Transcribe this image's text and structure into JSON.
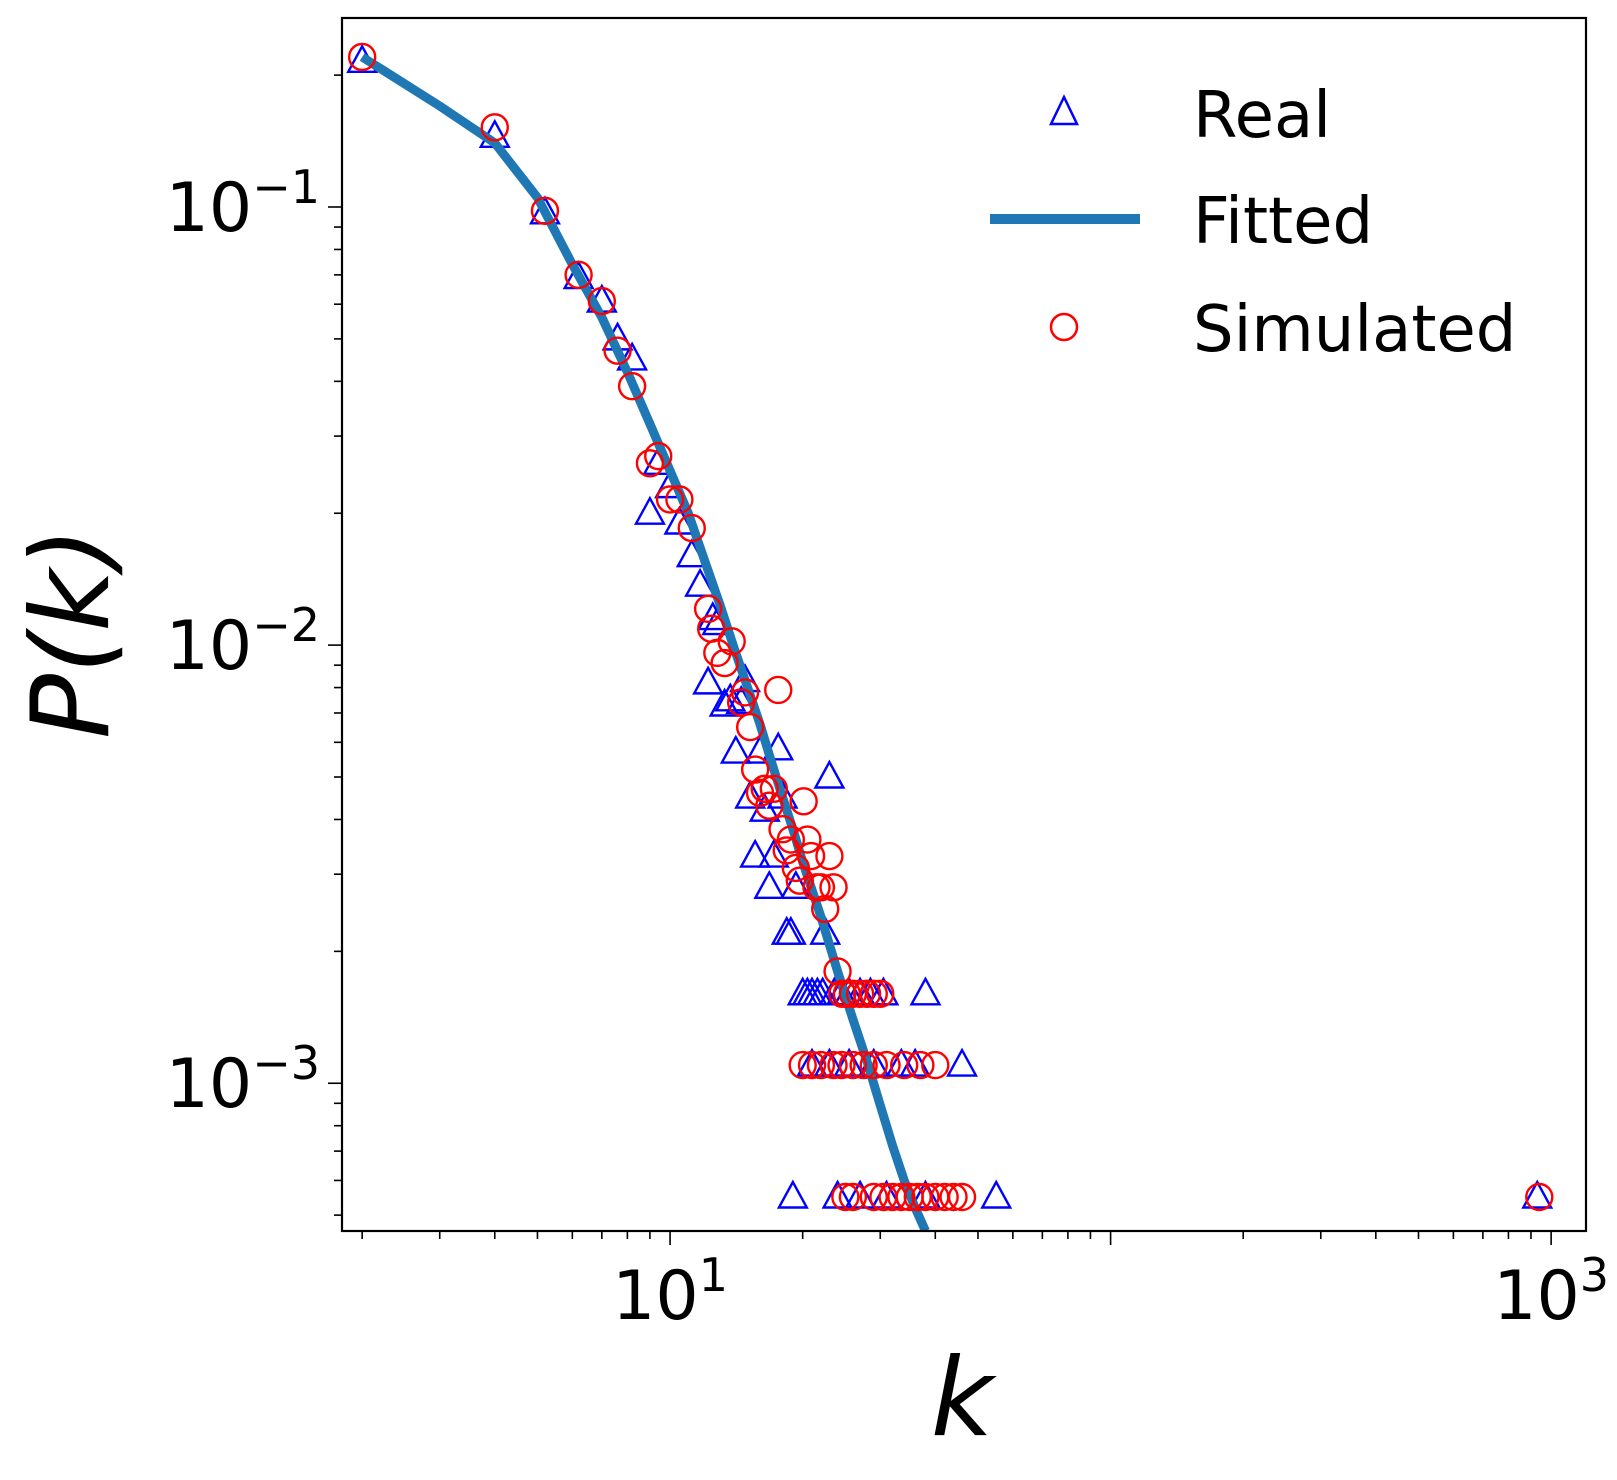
{
  "chart_data": {
    "type": "scatter",
    "title": "",
    "xlabel": "k",
    "ylabel": "P(k)",
    "xscale": "log",
    "yscale": "log",
    "xlim": [
      1.8,
      1200
    ],
    "ylim": [
      0.00046,
      0.27
    ],
    "grid": false,
    "legend_position": "top-right",
    "x_ticks": [
      {
        "value": 10,
        "base": "10",
        "exp": "1"
      },
      {
        "value": 1000,
        "base": "10",
        "exp": "3"
      }
    ],
    "y_ticks": [
      {
        "value": 0.1,
        "base": "10",
        "exp": "−1"
      },
      {
        "value": 0.01,
        "base": "10",
        "exp": "−2"
      },
      {
        "value": 0.001,
        "base": "10",
        "exp": "−3"
      }
    ],
    "series": [
      {
        "name": "Real",
        "kind": "scatter",
        "marker": "triangle",
        "color": "#0000ff",
        "points": [
          [
            2.0,
            0.215
          ],
          [
            4.0,
            0.145
          ],
          [
            5.2,
            0.097
          ],
          [
            6.2,
            0.069
          ],
          [
            7.0,
            0.061
          ],
          [
            7.6,
            0.05
          ],
          [
            8.2,
            0.045
          ],
          [
            9.0,
            0.02
          ],
          [
            9.4,
            0.026
          ],
          [
            10.0,
            0.023
          ],
          [
            10.5,
            0.019
          ],
          [
            11.2,
            0.016
          ],
          [
            11.7,
            0.0137
          ],
          [
            12.2,
            0.0082
          ],
          [
            12.5,
            0.0115
          ],
          [
            12.8,
            0.0112
          ],
          [
            13.3,
            0.0073
          ],
          [
            13.7,
            0.0075
          ],
          [
            14.1,
            0.0057
          ],
          [
            14.5,
            0.0074
          ],
          [
            14.8,
            0.0083
          ],
          [
            15.2,
            0.0045
          ],
          [
            15.6,
            0.0033
          ],
          [
            16.0,
            0.0057
          ],
          [
            16.4,
            0.0042
          ],
          [
            16.8,
            0.0028
          ],
          [
            17.2,
            0.0033
          ],
          [
            17.6,
            0.0058
          ],
          [
            18.0,
            0.0045
          ],
          [
            18.4,
            0.0022
          ],
          [
            18.8,
            0.0022
          ],
          [
            19.3,
            0.0028
          ],
          [
            20.0,
            0.0016
          ],
          [
            20.5,
            0.0016
          ],
          [
            21.0,
            0.0016
          ],
          [
            21.6,
            0.0016
          ],
          [
            22.2,
            0.0016
          ],
          [
            22.5,
            0.0022
          ],
          [
            23.0,
            0.005
          ],
          [
            23.6,
            0.0016
          ],
          [
            24.5,
            0.0016
          ],
          [
            25.5,
            0.0016
          ],
          [
            27.0,
            0.0016
          ],
          [
            28.5,
            0.0016
          ],
          [
            30.5,
            0.0016
          ],
          [
            38.0,
            0.0016
          ],
          [
            19.0,
            0.00055
          ],
          [
            21.0,
            0.0011
          ],
          [
            23.0,
            0.0011
          ],
          [
            24.0,
            0.00055
          ],
          [
            25.5,
            0.0011
          ],
          [
            27.0,
            0.00055
          ],
          [
            29.0,
            0.0011
          ],
          [
            31.0,
            0.00055
          ],
          [
            33.5,
            0.0011
          ],
          [
            36.0,
            0.0011
          ],
          [
            38.0,
            0.00055
          ],
          [
            46.0,
            0.0011
          ],
          [
            55.0,
            0.00055
          ],
          [
            930.0,
            0.00055
          ]
        ]
      },
      {
        "name": "Fitted",
        "kind": "line",
        "color": "#1f77b4",
        "points": [
          [
            2.0,
            0.22
          ],
          [
            3.0,
            0.17
          ],
          [
            4.0,
            0.14
          ],
          [
            5.0,
            0.105
          ],
          [
            6.0,
            0.074
          ],
          [
            7.0,
            0.056
          ],
          [
            8.0,
            0.042
          ],
          [
            9.0,
            0.032
          ],
          [
            10.0,
            0.025
          ],
          [
            11.0,
            0.02
          ],
          [
            12.0,
            0.0155
          ],
          [
            13.0,
            0.0123
          ],
          [
            14.0,
            0.0098
          ],
          [
            15.0,
            0.008
          ],
          [
            16.0,
            0.0066
          ],
          [
            17.0,
            0.0054
          ],
          [
            18.0,
            0.0045
          ],
          [
            19.0,
            0.0038
          ],
          [
            20.0,
            0.0032
          ],
          [
            22.0,
            0.0024
          ],
          [
            24.0,
            0.0018
          ],
          [
            26.0,
            0.0014
          ],
          [
            28.0,
            0.00112
          ],
          [
            30.0,
            0.00089
          ],
          [
            32.0,
            0.00072
          ],
          [
            34.0,
            0.0006
          ],
          [
            36.0,
            0.00052
          ],
          [
            38.0,
            0.00046
          ]
        ]
      },
      {
        "name": "Simulated",
        "kind": "scatter",
        "marker": "circle",
        "color": "#ff0000",
        "points": [
          [
            2.0,
            0.22
          ],
          [
            4.0,
            0.152
          ],
          [
            5.2,
            0.098
          ],
          [
            6.2,
            0.07
          ],
          [
            7.0,
            0.061
          ],
          [
            7.6,
            0.047
          ],
          [
            8.2,
            0.039
          ],
          [
            9.0,
            0.026
          ],
          [
            9.4,
            0.027
          ],
          [
            10.0,
            0.0215
          ],
          [
            10.5,
            0.0215
          ],
          [
            11.2,
            0.0185
          ],
          [
            12.2,
            0.0121
          ],
          [
            12.4,
            0.0109
          ],
          [
            12.8,
            0.0096
          ],
          [
            13.3,
            0.0091
          ],
          [
            13.8,
            0.0102
          ],
          [
            14.5,
            0.0074
          ],
          [
            14.8,
            0.0078
          ],
          [
            15.2,
            0.0065
          ],
          [
            15.6,
            0.0052
          ],
          [
            16.0,
            0.0046
          ],
          [
            16.4,
            0.0047
          ],
          [
            16.8,
            0.0043
          ],
          [
            17.2,
            0.0047
          ],
          [
            17.6,
            0.0079
          ],
          [
            18.0,
            0.0038
          ],
          [
            18.4,
            0.0034
          ],
          [
            18.8,
            0.0036
          ],
          [
            19.3,
            0.0031
          ],
          [
            19.7,
            0.0029
          ],
          [
            20.1,
            0.0044
          ],
          [
            20.5,
            0.0036
          ],
          [
            20.9,
            0.0033
          ],
          [
            21.5,
            0.0028
          ],
          [
            22.0,
            0.0028
          ],
          [
            22.5,
            0.0025
          ],
          [
            23.0,
            0.0033
          ],
          [
            23.5,
            0.0028
          ],
          [
            24.0,
            0.0018
          ],
          [
            24.6,
            0.0016
          ],
          [
            25.2,
            0.0016
          ],
          [
            26.0,
            0.0016
          ],
          [
            27.0,
            0.0016
          ],
          [
            28.0,
            0.0016
          ],
          [
            29.0,
            0.0016
          ],
          [
            30.0,
            0.0016
          ],
          [
            20.0,
            0.0011
          ],
          [
            21.0,
            0.0011
          ],
          [
            22.0,
            0.0011
          ],
          [
            23.5,
            0.0011
          ],
          [
            24.5,
            0.0011
          ],
          [
            26.0,
            0.0011
          ],
          [
            27.5,
            0.0011
          ],
          [
            29.0,
            0.0011
          ],
          [
            31.0,
            0.0011
          ],
          [
            34.0,
            0.0011
          ],
          [
            37.0,
            0.0011
          ],
          [
            40.0,
            0.0011
          ],
          [
            25.0,
            0.00055
          ],
          [
            26.0,
            0.00055
          ],
          [
            29.0,
            0.00055
          ],
          [
            30.5,
            0.00055
          ],
          [
            32.0,
            0.00055
          ],
          [
            33.5,
            0.00055
          ],
          [
            35.0,
            0.00055
          ],
          [
            36.5,
            0.00055
          ],
          [
            38.0,
            0.00055
          ],
          [
            40.0,
            0.00055
          ],
          [
            42.0,
            0.00055
          ],
          [
            44.0,
            0.00055
          ],
          [
            46.0,
            0.00055
          ],
          [
            940.0,
            0.00055
          ]
        ]
      }
    ]
  }
}
